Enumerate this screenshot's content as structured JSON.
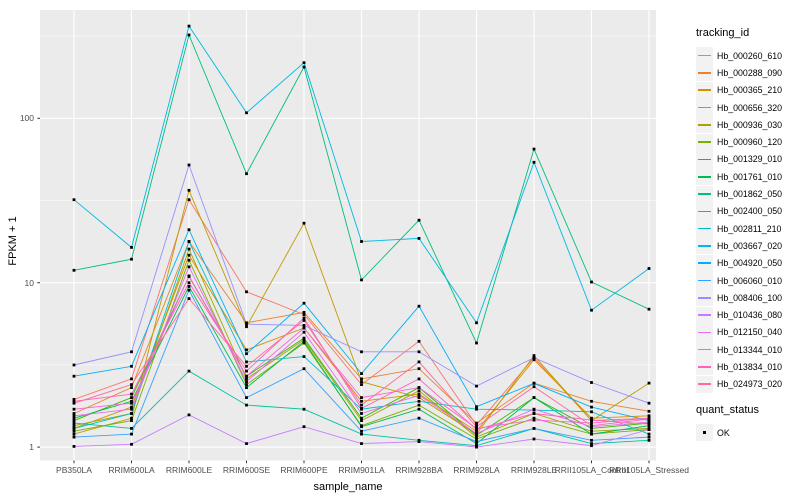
{
  "chart_data": {
    "type": "line",
    "title": "",
    "xlabel": "sample_name",
    "ylabel": "FPKM + 1",
    "y_scale": "log10",
    "ylim": [
      1,
      456
    ],
    "yticks": [
      "1",
      "10",
      "100"
    ],
    "grid": "on",
    "legend_position": "right",
    "point_shape": "square",
    "point_color": "#000000",
    "panel_bg": "#EBEBEB",
    "grid_color": "#FFFFFF",
    "tick_color": "#333333",
    "categories": [
      "PB350LA",
      "RRIM600LA",
      "RRIM600LE",
      "RRIM600SE",
      "RRIM600PE",
      "RRIM901LA",
      "RRIM928BA",
      "RRIM928LA",
      "RRIM928LE",
      "RRII105LA_Control",
      "RRII105LA_Stressed"
    ],
    "legend": {
      "title": "tracking_id",
      "quant_title": "quant_status",
      "quant_label": "OK"
    },
    "series": [
      {
        "name": "Hb_000260_610",
        "color": "#F8766D",
        "values": [
          1.95,
          2.6,
          32,
          8.8,
          6.4,
          2.4,
          4.4,
          1.36,
          3.5,
          1.45,
          1.5
        ]
      },
      {
        "name": "Hb_000288_090",
        "color": "#EA8331",
        "values": [
          1.6,
          2.3,
          17.8,
          5.7,
          6.6,
          2.6,
          3.0,
          1.4,
          2.45,
          1.9,
          1.65
        ]
      },
      {
        "name": "Hb_000365_210",
        "color": "#D89000",
        "values": [
          1.3,
          1.75,
          14.7,
          3.9,
          5.3,
          1.9,
          2.1,
          1.25,
          3.4,
          1.5,
          1.55
        ]
      },
      {
        "name": "Hb_000656_320",
        "color": "#C09B00",
        "values": [
          1.2,
          1.5,
          36.5,
          5.4,
          23,
          2.5,
          2.0,
          1.2,
          3.6,
          1.45,
          2.45
        ]
      },
      {
        "name": "Hb_000936_030",
        "color": "#A3A500",
        "values": [
          1.35,
          1.6,
          16,
          2.6,
          4.5,
          1.45,
          2.2,
          1.15,
          1.6,
          1.25,
          1.3
        ]
      },
      {
        "name": "Hb_000960_120",
        "color": "#7CAE00",
        "values": [
          1.25,
          1.45,
          13.7,
          2.4,
          4.3,
          1.35,
          1.8,
          1.12,
          1.5,
          1.2,
          1.28
        ]
      },
      {
        "name": "Hb_001329_010",
        "color": "#39B600",
        "values": [
          1.45,
          2.0,
          10.9,
          2.7,
          4.6,
          1.5,
          2.3,
          1.18,
          2.0,
          1.3,
          1.4
        ]
      },
      {
        "name": "Hb_001761_010",
        "color": "#00BB4E",
        "values": [
          1.5,
          1.9,
          9.5,
          2.3,
          4.4,
          1.33,
          1.7,
          1.05,
          2.0,
          1.2,
          1.35
        ]
      },
      {
        "name": "Hb_001862_050",
        "color": "#00BF7D",
        "values": [
          11.9,
          13.9,
          321,
          46,
          205,
          10.4,
          24,
          4.3,
          65,
          10.1,
          6.9
        ]
      },
      {
        "name": "Hb_002400_050",
        "color": "#00C1A3",
        "values": [
          1.4,
          1.3,
          2.9,
          1.8,
          1.7,
          1.2,
          1.1,
          1.02,
          1.3,
          1.05,
          1.1
        ]
      },
      {
        "name": "Hb_002811_210",
        "color": "#00BFC4",
        "values": [
          1.3,
          1.6,
          17.8,
          3.3,
          3.55,
          1.7,
          1.9,
          1.7,
          1.68,
          1.64,
          1.2
        ]
      },
      {
        "name": "Hb_003667_020",
        "color": "#00BAE0",
        "values": [
          32,
          16.4,
          364,
          108,
          218,
          17.8,
          18.6,
          5.7,
          54,
          6.8,
          12.2
        ]
      },
      {
        "name": "Hb_004920_050",
        "color": "#00B0F6",
        "values": [
          2.7,
          3.1,
          21,
          3.7,
          7.5,
          2.8,
          7.2,
          1.76,
          2.44,
          1.75,
          1.45
        ]
      },
      {
        "name": "Hb_006060_010",
        "color": "#35A2FF",
        "values": [
          1.15,
          1.2,
          9.0,
          2.0,
          3.0,
          1.25,
          1.5,
          1.08,
          1.3,
          1.1,
          1.15
        ]
      },
      {
        "name": "Hb_008406_100",
        "color": "#9590FF",
        "values": [
          3.16,
          3.8,
          52,
          5.6,
          5.5,
          3.8,
          3.8,
          2.35,
          3.5,
          2.47,
          1.85
        ]
      },
      {
        "name": "Hb_010436_080",
        "color": "#C77CFF",
        "values": [
          1.01,
          1.04,
          1.57,
          1.05,
          1.33,
          1.05,
          1.08,
          1.0,
          1.12,
          1.02,
          1.28
        ]
      },
      {
        "name": "Hb_012150_040",
        "color": "#E76BF3",
        "values": [
          1.55,
          1.7,
          12.5,
          2.5,
          5.0,
          1.6,
          2.07,
          1.21,
          1.7,
          1.33,
          1.42
        ]
      },
      {
        "name": "Hb_013344_010",
        "color": "#FA62DB",
        "values": [
          1.7,
          1.85,
          11,
          2.7,
          5.3,
          2.0,
          2.3,
          1.3,
          1.46,
          1.4,
          1.5
        ]
      },
      {
        "name": "Hb_013834_010",
        "color": "#FF62BC",
        "values": [
          1.9,
          2.1,
          10,
          2.9,
          6.1,
          1.72,
          2.6,
          1.28,
          1.6,
          1.46,
          1.38
        ]
      },
      {
        "name": "Hb_024973_020",
        "color": "#FF6A98",
        "values": [
          1.85,
          2.4,
          8.0,
          3.1,
          5.9,
          1.8,
          3.3,
          1.33,
          2.33,
          1.35,
          1.48
        ]
      }
    ]
  }
}
